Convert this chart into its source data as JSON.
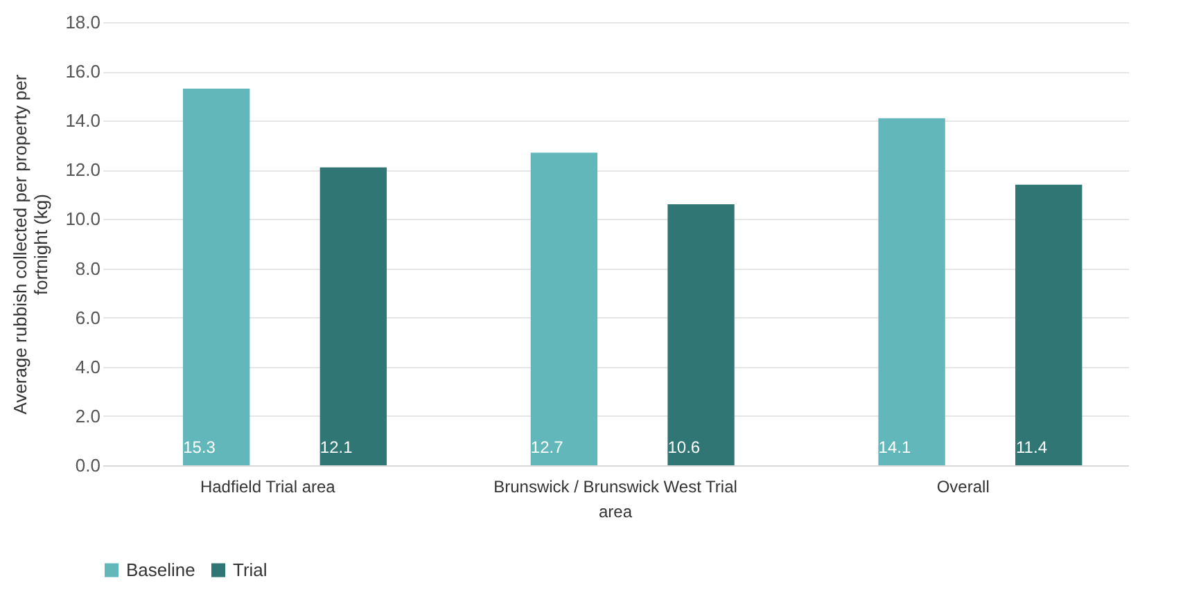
{
  "chart_data": {
    "type": "bar",
    "ylabel": "Average rubbish collected per property per fortnight (kg)",
    "categories": [
      "Hadfield Trial area",
      "Brunswick / Brunswick West Trial area",
      "Overall"
    ],
    "series": [
      {
        "name": "Baseline",
        "color": "#62b7ba",
        "values": [
          15.3,
          12.7,
          14.1
        ]
      },
      {
        "name": "Trial",
        "color": "#2f7674",
        "values": [
          12.1,
          10.6,
          11.4
        ]
      }
    ],
    "ylim": [
      0,
      18
    ],
    "yticks": [
      {
        "value": 0,
        "label": "0.0"
      },
      {
        "value": 2,
        "label": "2.0"
      },
      {
        "value": 4,
        "label": "4.0"
      },
      {
        "value": 6,
        "label": "6.0"
      },
      {
        "value": 8,
        "label": "8.0"
      },
      {
        "value": 10,
        "label": "10.0"
      },
      {
        "value": 12,
        "label": "12.0"
      },
      {
        "value": 14,
        "label": "14.0"
      },
      {
        "value": 16,
        "label": "16.0"
      },
      {
        "value": 18,
        "label": "18.0"
      }
    ],
    "grid": "y",
    "legend": "bottom",
    "data_labels": true
  }
}
